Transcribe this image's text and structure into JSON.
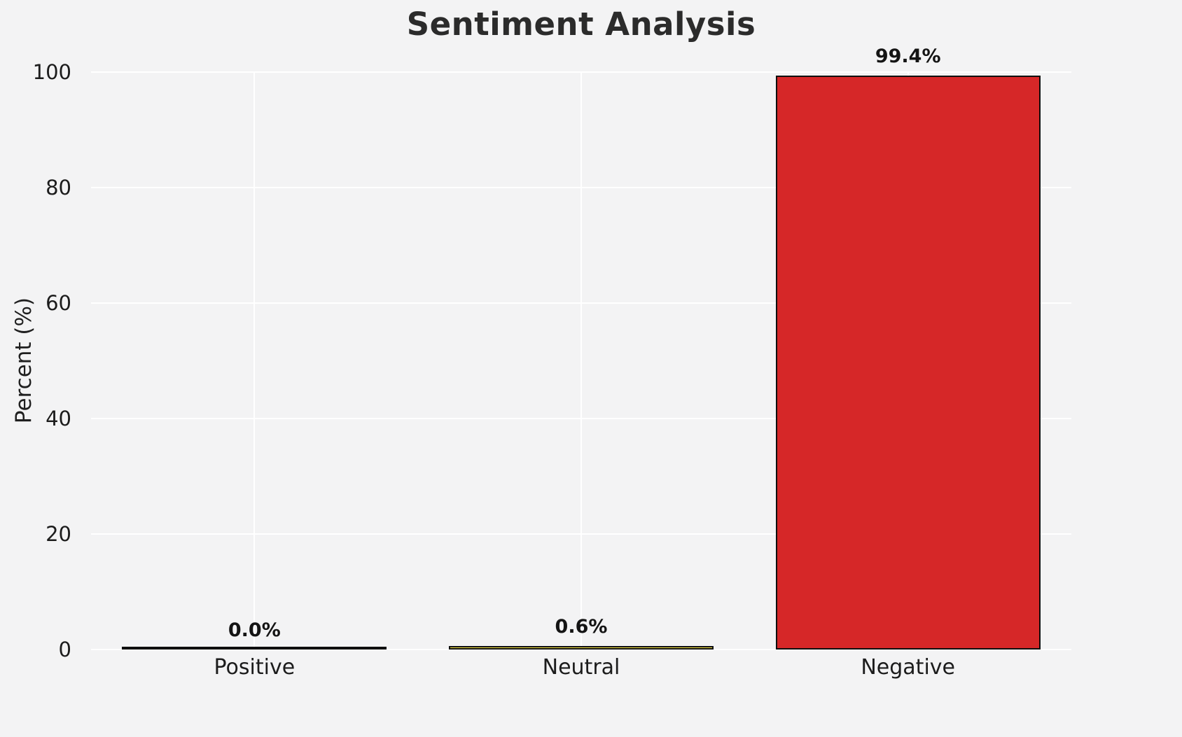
{
  "chart_data": {
    "type": "bar",
    "title": "Sentiment Analysis",
    "xlabel": "",
    "ylabel": "Percent (%)",
    "categories": [
      "Positive",
      "Neutral",
      "Negative"
    ],
    "values": [
      0.0,
      0.6,
      99.4
    ],
    "bar_labels": [
      "0.0%",
      "0.6%",
      "99.4%"
    ],
    "bar_colors": [
      "#2ca02c",
      "#f7e644",
      "#d62728"
    ],
    "bar_edge_color": "#0f0f0f",
    "ylim": [
      0,
      100
    ],
    "yticks": [
      0,
      20,
      40,
      60,
      80,
      100
    ],
    "grid": true,
    "gridline_color": "#ffffff",
    "background_color": "#f3f3f4",
    "legend": false
  }
}
